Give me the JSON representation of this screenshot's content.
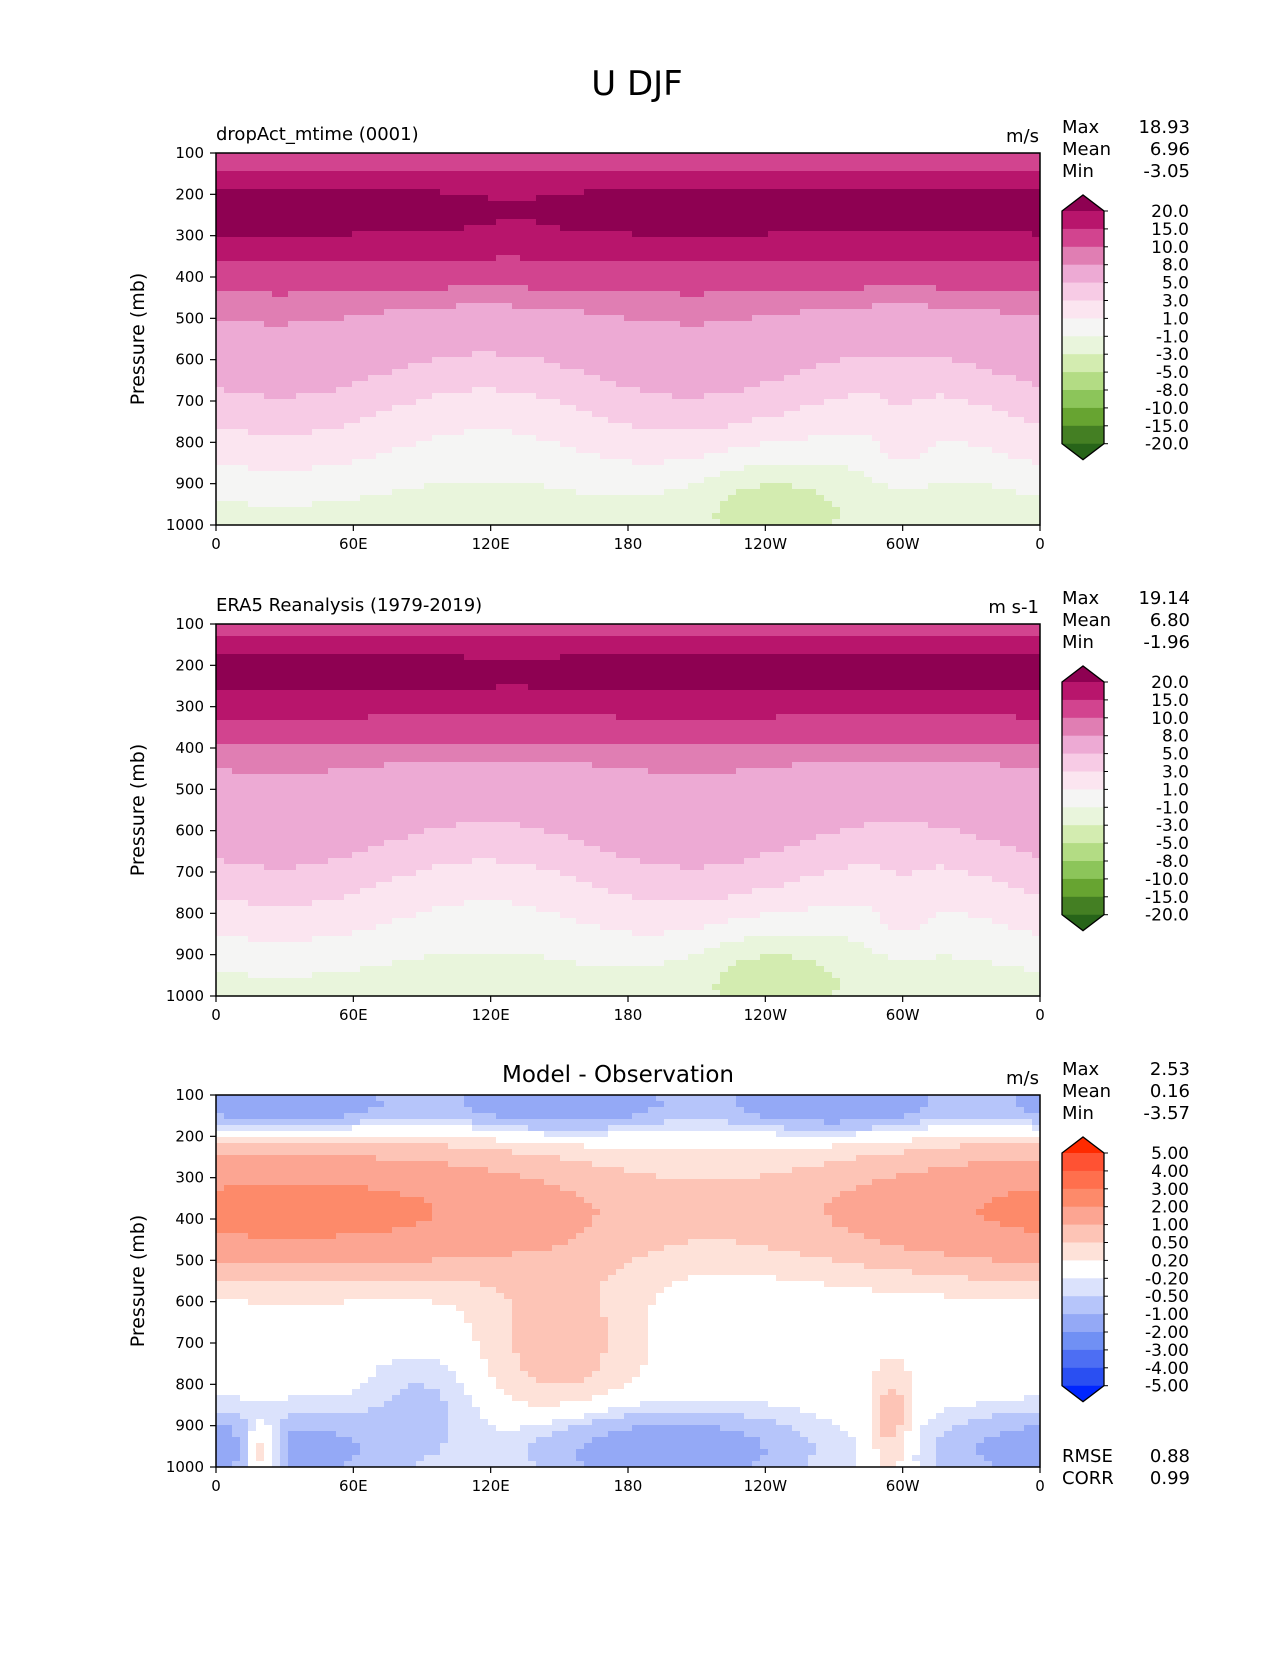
{
  "chart_data": {
    "type": "heatmap",
    "title": "U DJF",
    "panels": [
      {
        "id": "model",
        "left_title": "dropAct_mtime (0001)",
        "units": "m/s",
        "stats": [
          {
            "label": "Max",
            "value": "18.93"
          },
          {
            "label": "Mean",
            "value": "6.96"
          },
          {
            "label": "Min",
            "value": "-3.05"
          }
        ],
        "ylabel": "Pressure (mb)",
        "yticks": [
          "100",
          "200",
          "300",
          "400",
          "500",
          "600",
          "700",
          "800",
          "900",
          "1000"
        ],
        "ylim": [
          100,
          1000
        ],
        "xticks": [
          "0",
          "60E",
          "120E",
          "180",
          "120W",
          "60W",
          "0"
        ],
        "xlim": [
          0,
          360
        ],
        "colormap": "PiYG_r",
        "levels": [
          "20.0",
          "15.0",
          "10.0",
          "8.0",
          "5.0",
          "3.0",
          "1.0",
          "-1.0",
          "-3.0",
          "-5.0",
          "-8.0",
          "-10.0",
          "-15.0",
          "-20.0"
        ],
        "colors": [
          "#8e0152",
          "#b8156c",
          "#d2448f",
          "#e07eb3",
          "#edaad4",
          "#f7cbe5",
          "#fbe5f0",
          "#f5f5f4",
          "#e9f5dc",
          "#d3ecb0",
          "#b3dc84",
          "#8cc55a",
          "#67a431",
          "#447f23",
          "#276419"
        ],
        "field_summary": "Upper-level westerly jet (15-20 m/s) centered near 200-300 mb across all longitudes; speeds decrease downward to near zero or weak easterlies (-1 to -3 m/s) near 900-1000 mb, especially around 180-120W."
      },
      {
        "id": "obs",
        "left_title": "ERA5 Reanalysis (1979-2019)",
        "units": "m s-1",
        "stats": [
          {
            "label": "Max",
            "value": "19.14"
          },
          {
            "label": "Mean",
            "value": "6.80"
          },
          {
            "label": "Min",
            "value": "-1.96"
          }
        ],
        "ylabel": "Pressure (mb)",
        "yticks": [
          "100",
          "200",
          "300",
          "400",
          "500",
          "600",
          "700",
          "800",
          "900",
          "1000"
        ],
        "ylim": [
          100,
          1000
        ],
        "xticks": [
          "0",
          "60E",
          "120E",
          "180",
          "120W",
          "60W",
          "0"
        ],
        "xlim": [
          0,
          360
        ],
        "colormap": "PiYG_r",
        "levels": [
          "20.0",
          "15.0",
          "10.0",
          "8.0",
          "5.0",
          "3.0",
          "1.0",
          "-1.0",
          "-3.0",
          "-5.0",
          "-8.0",
          "-10.0",
          "-15.0",
          "-20.0"
        ],
        "colors": [
          "#8e0152",
          "#b8156c",
          "#d2448f",
          "#e07eb3",
          "#edaad4",
          "#f7cbe5",
          "#fbe5f0",
          "#f5f5f4",
          "#e9f5dc",
          "#d3ecb0",
          "#b3dc84",
          "#8cc55a",
          "#67a431",
          "#447f23",
          "#276419"
        ],
        "field_summary": "Similar structure to model: 15-20 m/s jet at 150-300 mb, weakening downward; weak easterlies near surface around 180-120W."
      },
      {
        "id": "diff",
        "center_title": "Model - Observation",
        "units": "m/s",
        "stats": [
          {
            "label": "Max",
            "value": "2.53"
          },
          {
            "label": "Mean",
            "value": "0.16"
          },
          {
            "label": "Min",
            "value": "-3.57"
          }
        ],
        "extra_stats": [
          {
            "label": "RMSE",
            "value": "0.88"
          },
          {
            "label": "CORR",
            "value": "0.99"
          }
        ],
        "ylabel": "Pressure (mb)",
        "yticks": [
          "100",
          "200",
          "300",
          "400",
          "500",
          "600",
          "700",
          "800",
          "900",
          "1000"
        ],
        "ylim": [
          100,
          1000
        ],
        "xticks": [
          "0",
          "60E",
          "120E",
          "180",
          "120W",
          "60W",
          "0"
        ],
        "xlim": [
          0,
          360
        ],
        "colormap": "RdBu_r",
        "levels": [
          "5.00",
          "4.00",
          "3.00",
          "2.00",
          "1.00",
          "0.50",
          "0.20",
          "-0.20",
          "-0.50",
          "-1.00",
          "-2.00",
          "-3.00",
          "-4.00",
          "-5.00"
        ],
        "colors": [
          "#ff2a00",
          "#ff5233",
          "#ff6f4d",
          "#fd8a6a",
          "#fca592",
          "#fdc4b6",
          "#fee2d9",
          "#ffffff",
          "#dbe2fc",
          "#b6c5fa",
          "#94a9f6",
          "#7090f4",
          "#4d6ef3",
          "#2a4ff2",
          "#0026ff"
        ],
        "field_summary": "Negative bias (-0.5 to -2 m/s) at 100-200 mb; positive bias (0.5-2 m/s) from 250-600 mb, strongest 0-120E; mixed near-zero to negative (-0.5 to -2) near 800-1000 mb."
      }
    ]
  }
}
